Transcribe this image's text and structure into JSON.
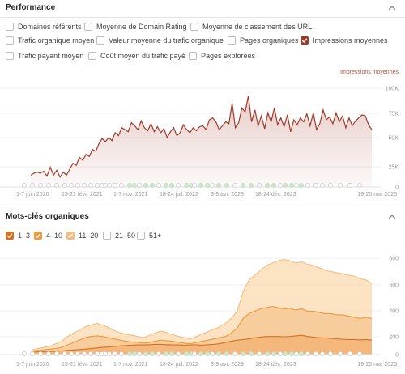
{
  "performance": {
    "title": "Performance",
    "checkboxes": [
      {
        "label": "Domaines référents",
        "checked": false
      },
      {
        "label": "Moyenne de Domain Rating",
        "checked": false
      },
      {
        "label": "Moyenne de classement des URL",
        "checked": false
      },
      {
        "label": "Trafic organique moyen",
        "checked": false
      },
      {
        "label": "Valeur moyenne du trafic organique",
        "checked": false
      },
      {
        "label": "Pages organiques",
        "checked": false
      },
      {
        "label": "Impressions moyennes",
        "checked": true,
        "color": "#a13a2a"
      },
      {
        "label": "Trafic payant moyen",
        "checked": false
      },
      {
        "label": "Coût moyen du trafic payé",
        "checked": false
      },
      {
        "label": "Pages explorées",
        "checked": false
      }
    ],
    "chart_data": {
      "type": "area",
      "series": [
        {
          "name": "Impressions moyennes",
          "color": "#a13a2a",
          "values": [
            12,
            14,
            15,
            14,
            16,
            11,
            20,
            12,
            17,
            10,
            15,
            12,
            18,
            24,
            22,
            30,
            27,
            33,
            31,
            38,
            36,
            44,
            49,
            46,
            50,
            47,
            55,
            52,
            60,
            58,
            56,
            65,
            62,
            58,
            67,
            60,
            57,
            64,
            56,
            61,
            55,
            59,
            50,
            56,
            60,
            52,
            55,
            63,
            58,
            55,
            60,
            57,
            61,
            62,
            58,
            68,
            70,
            66,
            58,
            62,
            66,
            64,
            85,
            60,
            65,
            80,
            76,
            92,
            66,
            78,
            62,
            72,
            59,
            75,
            66,
            80,
            63,
            70,
            61,
            73,
            56,
            68,
            63,
            70,
            66,
            74,
            62,
            75,
            58,
            64,
            78,
            68,
            71,
            64,
            75,
            66,
            72,
            60,
            70,
            62,
            67,
            70,
            73,
            72,
            63,
            58
          ]
        }
      ],
      "ylabel": "Impressions moyennes",
      "y_ticks": [
        "100K",
        "75K",
        "50K",
        "25K",
        "0"
      ],
      "ylim": [
        0,
        100
      ],
      "x_ticks": [
        "1-7 juin 2020",
        "15-21 févr. 2021",
        "1-7 nov. 2021",
        "18-24 juil. 2022",
        "3-9 avr. 2023",
        "18-24 déc. 2023",
        "19-20 mai 2025"
      ]
    }
  },
  "keywords": {
    "title": "Mots-clés organiques",
    "checkboxes": [
      {
        "label": "1–3",
        "checked": true,
        "color": "#d9711c"
      },
      {
        "label": "4–10",
        "checked": true,
        "color": "#eb9a3d"
      },
      {
        "label": "11–20",
        "checked": true,
        "color": "#f5be7f"
      },
      {
        "label": "21–50",
        "checked": false
      },
      {
        "label": "51+",
        "checked": false
      }
    ],
    "chart_data": {
      "type": "area",
      "series": [
        {
          "name": "1–3",
          "color": "#d9711c",
          "values": [
            20,
            22,
            25,
            25,
            28,
            30,
            35,
            38,
            42,
            45,
            50,
            55,
            60,
            63,
            68,
            72,
            75,
            78,
            80,
            80,
            82,
            85,
            85,
            82,
            80,
            80,
            78,
            80,
            80,
            78,
            82,
            85,
            90,
            100,
            110,
            120,
            125,
            130,
            140,
            145,
            150,
            150,
            150,
            148,
            150,
            155,
            160,
            150,
            145,
            140,
            138,
            135,
            130,
            128,
            125,
            125,
            122,
            125,
            120
          ]
        },
        {
          "name": "4–10",
          "color": "#eb9a3d",
          "values": [
            30,
            35,
            40,
            45,
            50,
            60,
            80,
            100,
            120,
            140,
            150,
            155,
            150,
            140,
            130,
            120,
            110,
            105,
            100,
            95,
            100,
            110,
            120,
            115,
            110,
            100,
            95,
            90,
            100,
            110,
            120,
            130,
            140,
            150,
            180,
            220,
            300,
            340,
            360,
            380,
            390,
            400,
            390,
            380,
            385,
            370,
            380,
            360,
            360,
            350,
            340,
            340,
            330,
            330,
            320,
            310,
            300,
            310,
            300
          ]
        },
        {
          "name": "11–20",
          "color": "#f5be7f",
          "values": [
            40,
            50,
            60,
            70,
            90,
            110,
            150,
            180,
            200,
            230,
            245,
            260,
            245,
            225,
            200,
            180,
            170,
            160,
            150,
            140,
            160,
            180,
            195,
            180,
            165,
            150,
            140,
            130,
            150,
            170,
            190,
            210,
            230,
            260,
            300,
            360,
            520,
            620,
            660,
            700,
            740,
            760,
            780,
            790,
            780,
            760,
            770,
            750,
            740,
            720,
            700,
            690,
            680,
            670,
            660,
            650,
            630,
            620,
            590
          ]
        }
      ],
      "y_ticks": [
        "800",
        "600",
        "400",
        "200",
        "0"
      ],
      "ylim": [
        0,
        800
      ],
      "x_ticks": [
        "1-7 juin 2020",
        "15-21 févr. 2021",
        "1-7 nov. 2021",
        "18-24 juil. 2022",
        "3-9 avr. 2023",
        "18-24 déc. 2023",
        "19-20 mai 2025"
      ]
    }
  }
}
